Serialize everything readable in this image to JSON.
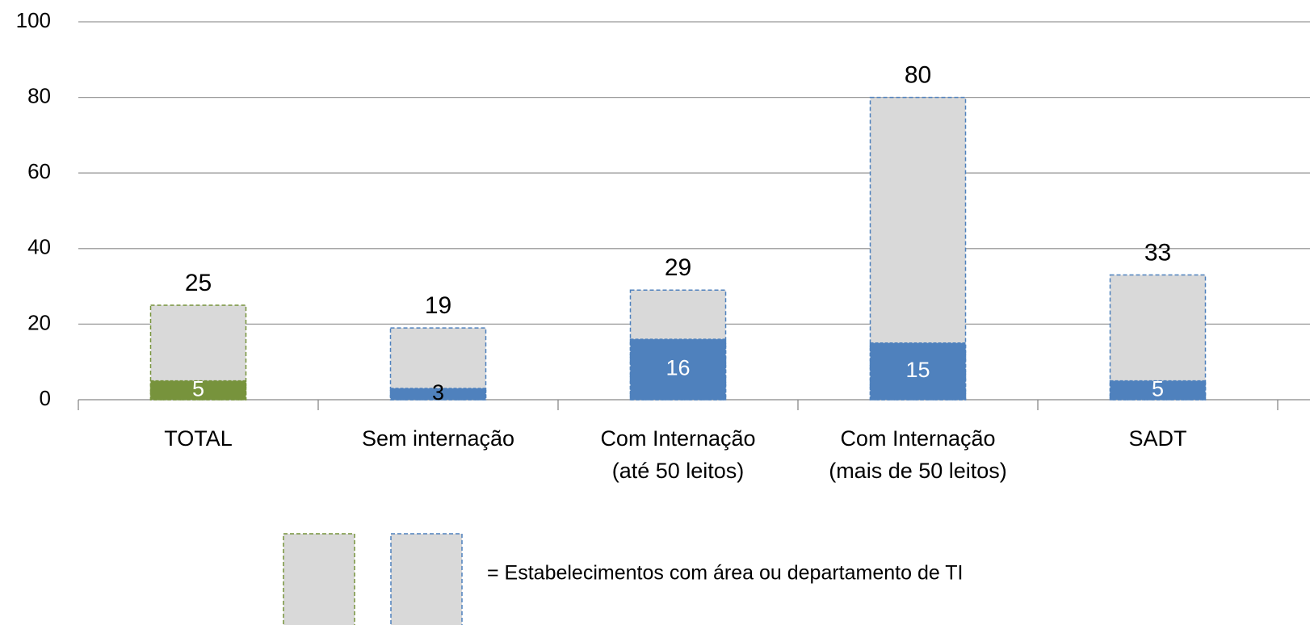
{
  "chart_data": {
    "type": "bar",
    "categories": [
      [
        "TOTAL"
      ],
      [
        "Sem internação"
      ],
      [
        "Com Internação",
        "(até 50 leitos)"
      ],
      [
        "Com Internação",
        "(mais de 50 leitos)"
      ],
      [
        "SADT"
      ]
    ],
    "series": [
      {
        "values": [
          25,
          19,
          29,
          80,
          33
        ],
        "fill": "#d9d9d9",
        "colors": [
          "#77933c",
          "#4f81bd",
          "#4f81bd",
          "#4f81bd",
          "#4f81bd"
        ],
        "dashed": true,
        "label_colors": [
          "#000",
          "#000",
          "#000",
          "#000",
          "#000"
        ]
      },
      {
        "values": [
          5,
          3,
          16,
          15,
          5
        ],
        "colors": [
          "#77933c",
          "#4f81bd",
          "#4f81bd",
          "#4f81bd",
          "#4f81bd"
        ],
        "label_colors": [
          "#fff",
          "#000",
          "#fff",
          "#fff",
          "#fff"
        ]
      }
    ],
    "ylim": [
      0,
      100
    ],
    "yticks": [
      0,
      20,
      40,
      60,
      80,
      100
    ],
    "grid": true,
    "legend": {
      "text": "= Estabelecimentos com área ou departamento de TI",
      "colors": [
        "#77933c",
        "#4f81bd"
      ]
    }
  }
}
